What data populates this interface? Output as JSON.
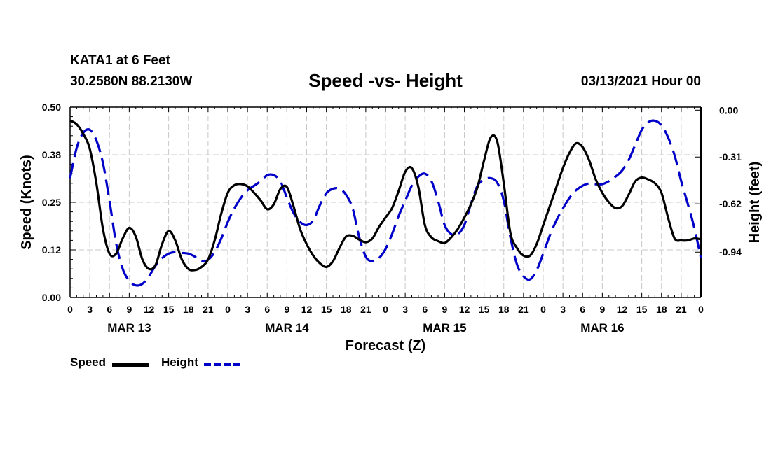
{
  "header": {
    "station": "KATA1 at 6 Feet",
    "coords": "30.2580N 88.2130W",
    "title": "Speed -vs- Height",
    "timestamp": "03/13/2021 Hour 00"
  },
  "legend": {
    "speed": "Speed",
    "height": "Height"
  },
  "colors": {
    "speed": "#000000",
    "height": "#0000c8",
    "grid": "#c8c8c8"
  },
  "chart_data": {
    "type": "line",
    "title": "Speed -vs- Height",
    "xlabel": "Forecast (Z)",
    "ylabel": "Speed (Knots)",
    "y2label": "Height (feet)",
    "xlim": [
      0,
      96
    ],
    "ylim": [
      0,
      0.5
    ],
    "y2lim": [
      -1.24,
      0.02
    ],
    "x_ticks": [
      0,
      3,
      6,
      9,
      12,
      15,
      18,
      21,
      24,
      27,
      30,
      33,
      36,
      39,
      42,
      45,
      48,
      51,
      54,
      57,
      60,
      63,
      66,
      69,
      72,
      75,
      78,
      81,
      84,
      87,
      90,
      93,
      96
    ],
    "x_tick_labels": [
      "0",
      "3",
      "6",
      "9",
      "12",
      "15",
      "18",
      "21",
      "0",
      "3",
      "6",
      "9",
      "12",
      "15",
      "18",
      "21",
      "0",
      "3",
      "6",
      "9",
      "12",
      "15",
      "18",
      "21",
      "0",
      "3",
      "6",
      "9",
      "12",
      "15",
      "18",
      "21",
      "0"
    ],
    "day_labels": [
      {
        "label": "MAR 13",
        "x": 9
      },
      {
        "label": "MAR 14",
        "x": 33
      },
      {
        "label": "MAR 15",
        "x": 57
      },
      {
        "label": "MAR 16",
        "x": 81
      }
    ],
    "y_ticks": [
      0.0,
      0.125,
      0.25,
      0.375,
      0.5
    ],
    "y_tick_labels": [
      "0.00",
      "0.12",
      "0.25",
      "0.38",
      "0.50"
    ],
    "y2_ticks": [
      0.0,
      -0.31,
      -0.62,
      -0.94
    ],
    "y2_tick_labels": [
      "0.00",
      "-0.31",
      "-0.62",
      "-0.94"
    ],
    "grid": true,
    "series": [
      {
        "name": "Speed",
        "axis": "left",
        "x": [
          0,
          1,
          2,
          3,
          4,
          5,
          6,
          7,
          8,
          9,
          10,
          11,
          12,
          13,
          14,
          15,
          16,
          17,
          18,
          19,
          20,
          21,
          22,
          23,
          24,
          25,
          26,
          27,
          28,
          29,
          30,
          31,
          32,
          33,
          34,
          35,
          36,
          37,
          38,
          39,
          40,
          41,
          42,
          43,
          44,
          45,
          46,
          47,
          48,
          49,
          50,
          51,
          52,
          53,
          54,
          55,
          56,
          57,
          58,
          59,
          60,
          61,
          62,
          63,
          64,
          65,
          66,
          67,
          68,
          69,
          70,
          71,
          72,
          73,
          74,
          75,
          76,
          77,
          78,
          79,
          80,
          81,
          82,
          83,
          84,
          85,
          86,
          87,
          88,
          89,
          90,
          91,
          92,
          93,
          94,
          95,
          96
        ],
        "values": [
          0.465,
          0.455,
          0.43,
          0.39,
          0.3,
          0.18,
          0.115,
          0.115,
          0.155,
          0.183,
          0.16,
          0.1,
          0.075,
          0.085,
          0.14,
          0.175,
          0.15,
          0.1,
          0.075,
          0.072,
          0.08,
          0.1,
          0.15,
          0.22,
          0.275,
          0.295,
          0.298,
          0.292,
          0.275,
          0.255,
          0.232,
          0.245,
          0.285,
          0.29,
          0.24,
          0.18,
          0.14,
          0.11,
          0.09,
          0.08,
          0.095,
          0.13,
          0.16,
          0.162,
          0.152,
          0.145,
          0.155,
          0.185,
          0.21,
          0.235,
          0.28,
          0.33,
          0.34,
          0.29,
          0.19,
          0.158,
          0.148,
          0.143,
          0.158,
          0.18,
          0.21,
          0.245,
          0.29,
          0.36,
          0.42,
          0.41,
          0.3,
          0.17,
          0.13,
          0.11,
          0.11,
          0.14,
          0.19,
          0.24,
          0.29,
          0.34,
          0.38,
          0.405,
          0.395,
          0.36,
          0.31,
          0.275,
          0.25,
          0.235,
          0.24,
          0.27,
          0.305,
          0.315,
          0.31,
          0.3,
          0.275,
          0.21,
          0.155,
          0.15,
          0.15,
          0.155,
          0.153
        ]
      },
      {
        "name": "Height",
        "axis": "right",
        "x": [
          0,
          1,
          2,
          3,
          4,
          5,
          6,
          7,
          8,
          9,
          10,
          11,
          12,
          13,
          14,
          15,
          16,
          17,
          18,
          19,
          20,
          21,
          22,
          23,
          24,
          25,
          26,
          27,
          28,
          29,
          30,
          31,
          32,
          33,
          34,
          35,
          36,
          37,
          38,
          39,
          40,
          41,
          42,
          43,
          44,
          45,
          46,
          47,
          48,
          49,
          50,
          51,
          52,
          53,
          54,
          55,
          56,
          57,
          58,
          59,
          60,
          61,
          62,
          63,
          64,
          65,
          66,
          67,
          68,
          69,
          70,
          71,
          72,
          73,
          74,
          75,
          76,
          77,
          78,
          79,
          80,
          81,
          82,
          83,
          84,
          85,
          86,
          87,
          88,
          89,
          90,
          91,
          92,
          93,
          94,
          95,
          96
        ],
        "values": [
          -0.45,
          -0.25,
          -0.15,
          -0.13,
          -0.2,
          -0.35,
          -0.6,
          -0.88,
          -1.05,
          -1.13,
          -1.16,
          -1.15,
          -1.1,
          -1.03,
          -0.98,
          -0.95,
          -0.94,
          -0.945,
          -0.95,
          -0.97,
          -1.0,
          -0.99,
          -0.94,
          -0.85,
          -0.74,
          -0.65,
          -0.58,
          -0.53,
          -0.5,
          -0.47,
          -0.43,
          -0.43,
          -0.47,
          -0.58,
          -0.68,
          -0.74,
          -0.76,
          -0.73,
          -0.63,
          -0.55,
          -0.52,
          -0.52,
          -0.56,
          -0.65,
          -0.84,
          -0.97,
          -1.0,
          -0.98,
          -0.92,
          -0.82,
          -0.7,
          -0.6,
          -0.5,
          -0.44,
          -0.42,
          -0.47,
          -0.6,
          -0.76,
          -0.82,
          -0.82,
          -0.76,
          -0.62,
          -0.5,
          -0.46,
          -0.45,
          -0.48,
          -0.6,
          -0.84,
          -1.02,
          -1.1,
          -1.12,
          -1.06,
          -0.95,
          -0.83,
          -0.73,
          -0.65,
          -0.58,
          -0.53,
          -0.5,
          -0.485,
          -0.49,
          -0.49,
          -0.47,
          -0.44,
          -0.4,
          -0.33,
          -0.23,
          -0.13,
          -0.08,
          -0.07,
          -0.1,
          -0.18,
          -0.3,
          -0.47,
          -0.62,
          -0.78,
          -0.98
        ]
      }
    ]
  }
}
